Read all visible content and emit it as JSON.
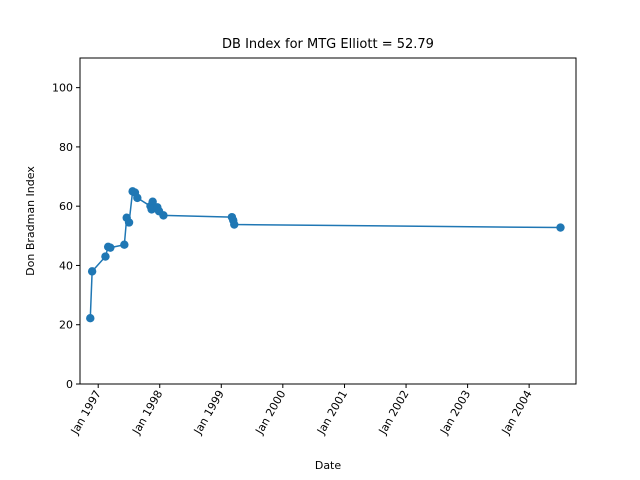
{
  "chart_data": {
    "type": "line",
    "title": "DB Index for MTG Elliott = 52.79",
    "xlabel": "Date",
    "ylabel": "Don Bradman Index",
    "xlim": [
      "1996-09-15",
      "2004-10-05"
    ],
    "ylim": [
      0,
      110
    ],
    "yticks": [
      0,
      20,
      40,
      60,
      80,
      100
    ],
    "xticks": [
      {
        "date": "1997-01-01",
        "label": "Jan 1997"
      },
      {
        "date": "1998-01-01",
        "label": "Jan 1998"
      },
      {
        "date": "1999-01-01",
        "label": "Jan 1999"
      },
      {
        "date": "2000-01-01",
        "label": "Jan 2000"
      },
      {
        "date": "2001-01-01",
        "label": "Jan 2001"
      },
      {
        "date": "2002-01-01",
        "label": "Jan 2002"
      },
      {
        "date": "2003-01-01",
        "label": "Jan 2003"
      },
      {
        "date": "2004-01-01",
        "label": "Jan 2004"
      }
    ],
    "grid": false,
    "color": "#1f77b4",
    "series": [
      {
        "name": "",
        "points": [
          {
            "x": "1996-11-15",
            "y": 22.2
          },
          {
            "x": "1996-11-26",
            "y": 38.0
          },
          {
            "x": "1997-02-13",
            "y": 43.0
          },
          {
            "x": "1997-03-01",
            "y": 46.3
          },
          {
            "x": "1997-03-14",
            "y": 46.0
          },
          {
            "x": "1997-06-05",
            "y": 47.0
          },
          {
            "x": "1997-06-19",
            "y": 56.1
          },
          {
            "x": "1997-07-03",
            "y": 54.5
          },
          {
            "x": "1997-07-24",
            "y": 65.0
          },
          {
            "x": "1997-08-07",
            "y": 64.6
          },
          {
            "x": "1997-08-21",
            "y": 62.8
          },
          {
            "x": "1997-11-07",
            "y": 60.0
          },
          {
            "x": "1997-11-14",
            "y": 58.9
          },
          {
            "x": "1997-11-20",
            "y": 61.5
          },
          {
            "x": "1997-11-28",
            "y": 59.3
          },
          {
            "x": "1997-12-18",
            "y": 59.6
          },
          {
            "x": "1997-12-28",
            "y": 58.3
          },
          {
            "x": "1998-01-23",
            "y": 56.9
          },
          {
            "x": "1999-03-05",
            "y": 56.3
          },
          {
            "x": "1999-03-13",
            "y": 55.2
          },
          {
            "x": "1999-03-19",
            "y": 53.8
          },
          {
            "x": "2004-07-05",
            "y": 52.79
          }
        ]
      }
    ]
  }
}
